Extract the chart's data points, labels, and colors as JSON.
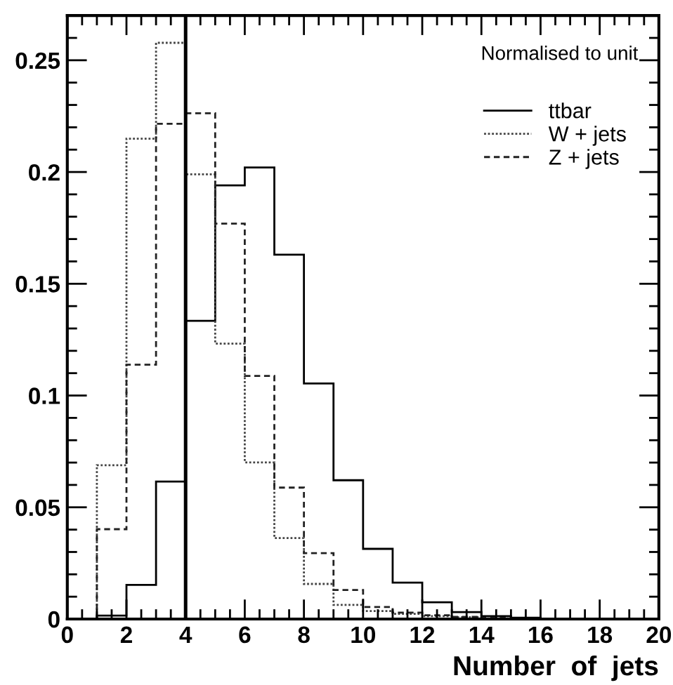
{
  "chart_data": {
    "type": "histogram",
    "xlabel": "Number  of  jets",
    "annotations": [
      "Normalised to unit"
    ],
    "bins": [
      0,
      1,
      2,
      3,
      4,
      5,
      6,
      7,
      8,
      9,
      10,
      11,
      12,
      13,
      14,
      15,
      16,
      17,
      18,
      19,
      20
    ],
    "series": [
      {
        "name": "ttbar",
        "color": "#000000",
        "line_style": "solid",
        "values": [
          0,
          0.0015,
          0.0153,
          0.0615,
          0.1334,
          0.194,
          0.202,
          0.163,
          0.1054,
          0.0621,
          0.0314,
          0.0163,
          0.0075,
          0.0031,
          0.0013,
          0.0006,
          0,
          0,
          0,
          0
        ]
      },
      {
        "name": "W + jets",
        "color": "#444444",
        "line_style": "dotted",
        "values": [
          0,
          0.0688,
          0.2149,
          0.2578,
          0.199,
          0.1232,
          0.0701,
          0.0362,
          0.0157,
          0.0063,
          0.0036,
          0.0023,
          0.0013,
          0.0008,
          0.0003,
          0,
          0,
          0,
          0,
          0
        ]
      },
      {
        "name": "Z + jets",
        "color": "#222222",
        "line_style": "dashed",
        "values": [
          0,
          0.0402,
          0.1138,
          0.2216,
          0.2263,
          0.1769,
          0.1088,
          0.0588,
          0.0295,
          0.013,
          0.0054,
          0.0029,
          0.0017,
          0.001,
          0.0005,
          0,
          0,
          0,
          0,
          0
        ]
      }
    ],
    "ref_lines": [
      {
        "axis": "x",
        "value": 4,
        "color": "#000000",
        "line_style": "solid"
      }
    ],
    "xlim": [
      0,
      20
    ],
    "xticks": [
      0,
      2,
      4,
      6,
      8,
      10,
      12,
      14,
      16,
      18,
      20
    ],
    "ylim": [
      0,
      0.27
    ],
    "yticks": [
      0,
      0.05,
      0.1,
      0.15,
      0.2,
      0.25
    ],
    "grid": false,
    "legend": "top right"
  }
}
